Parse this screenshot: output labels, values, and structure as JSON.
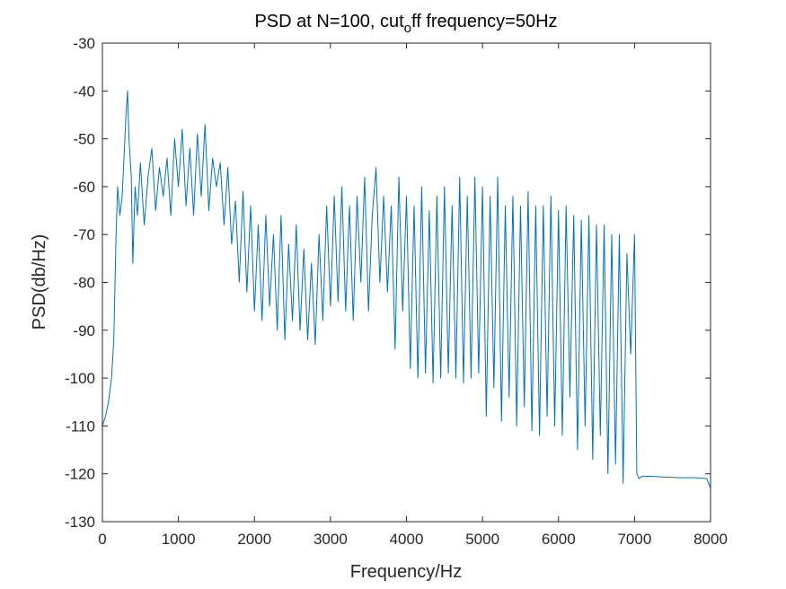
{
  "chart_data": {
    "type": "line",
    "title": "PSD at N=100, cut",
    "title_subscript": "o",
    "title_suffix": "ff frequency=50Hz",
    "xlabel": "Frequency/Hz",
    "ylabel": "PSD(db/Hz)",
    "xlim": [
      0,
      8000
    ],
    "ylim": [
      -130,
      -30
    ],
    "xticks": [
      0,
      1000,
      2000,
      3000,
      4000,
      5000,
      6000,
      7000,
      8000
    ],
    "yticks": [
      -30,
      -40,
      -50,
      -60,
      -70,
      -80,
      -90,
      -100,
      -110,
      -120,
      -130
    ],
    "grid": false,
    "legend": "none",
    "series_color": "#0072BD",
    "series": [
      {
        "x": [
          0,
          40,
          80,
          120,
          150,
          180,
          200,
          230,
          260,
          290,
          310,
          330,
          350,
          380,
          400,
          430,
          460,
          500,
          550,
          600,
          650,
          700,
          750,
          800,
          850,
          900,
          950,
          1000,
          1050,
          1100,
          1150,
          1200,
          1250,
          1300,
          1350,
          1400,
          1450,
          1500,
          1550,
          1600,
          1650,
          1700,
          1750,
          1800,
          1850,
          1900,
          1950,
          2000,
          2050,
          2100,
          2150,
          2200,
          2250,
          2300,
          2350,
          2400,
          2450,
          2500,
          2550,
          2600,
          2650,
          2700,
          2750,
          2800,
          2850,
          2900,
          2950,
          3000,
          3050,
          3100,
          3150,
          3200,
          3250,
          3300,
          3350,
          3400,
          3450,
          3500,
          3550,
          3600,
          3650,
          3700,
          3750,
          3800,
          3850,
          3900,
          3950,
          4000,
          4050,
          4100,
          4150,
          4200,
          4250,
          4300,
          4350,
          4400,
          4450,
          4500,
          4550,
          4600,
          4650,
          4700,
          4750,
          4800,
          4850,
          4900,
          4950,
          5000,
          5050,
          5100,
          5150,
          5200,
          5250,
          5300,
          5350,
          5400,
          5450,
          5500,
          5550,
          5600,
          5650,
          5700,
          5750,
          5800,
          5850,
          5900,
          5950,
          6000,
          6050,
          6100,
          6150,
          6200,
          6250,
          6300,
          6350,
          6400,
          6450,
          6500,
          6550,
          6600,
          6650,
          6700,
          6750,
          6800,
          6850,
          6900,
          6950,
          7000,
          7030,
          7060,
          7100,
          7200,
          7400,
          7600,
          7800,
          7950,
          8000
        ],
        "y": [
          -110,
          -108,
          -105,
          -100,
          -92,
          -70,
          -60,
          -66,
          -62,
          -52,
          -45,
          -40,
          -50,
          -58,
          -76,
          -60,
          -66,
          -55,
          -68,
          -58,
          -52,
          -65,
          -56,
          -62,
          -54,
          -66,
          -50,
          -60,
          -48,
          -64,
          -52,
          -66,
          -49,
          -62,
          -47,
          -65,
          -54,
          -60,
          -55,
          -68,
          -56,
          -72,
          -63,
          -80,
          -61,
          -82,
          -64,
          -86,
          -68,
          -88,
          -66,
          -85,
          -70,
          -90,
          -66,
          -92,
          -72,
          -88,
          -68,
          -90,
          -73,
          -92,
          -76,
          -93,
          -70,
          -88,
          -64,
          -85,
          -62,
          -84,
          -60,
          -86,
          -64,
          -88,
          -62,
          -80,
          -58,
          -86,
          -66,
          -56,
          -80,
          -62,
          -82,
          -64,
          -94,
          -58,
          -86,
          -62,
          -98,
          -64,
          -100,
          -60,
          -99,
          -65,
          -101,
          -62,
          -100,
          -60,
          -99,
          -64,
          -100,
          -58,
          -101,
          -62,
          -100,
          -58,
          -99,
          -60,
          -108,
          -62,
          -102,
          -58,
          -109,
          -64,
          -104,
          -62,
          -110,
          -64,
          -106,
          -61,
          -111,
          -64,
          -112,
          -64,
          -108,
          -62,
          -110,
          -65,
          -112,
          -64,
          -104,
          -66,
          -115,
          -67,
          -110,
          -66,
          -117,
          -68,
          -112,
          -68,
          -120,
          -70,
          -118,
          -70,
          -122,
          -74,
          -95,
          -70,
          -120,
          -121,
          -120.5,
          -120.5,
          -120.7,
          -120.8,
          -120.8,
          -121,
          -123
        ]
      }
    ]
  }
}
